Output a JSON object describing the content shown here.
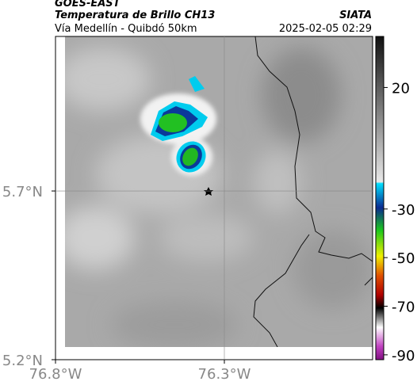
{
  "header": {
    "title": "GOES-EAST",
    "subtitle": "Temperatura de Brillo CH13",
    "route": "Vía Medellín - Quibdó 50km",
    "source": "SIATA",
    "timestamp": "2025-02-05 02:29"
  },
  "map": {
    "lonlim": [
      -76.8,
      -75.861
    ],
    "latlim": [
      5.2,
      6.158
    ],
    "xticks": [
      {
        "value": -76.8,
        "label": "76.8°W"
      },
      {
        "value": -76.3,
        "label": "76.3°W"
      }
    ],
    "yticks": [
      {
        "value": 5.2,
        "label": "5.2°N"
      },
      {
        "value": 5.7,
        "label": "5.7°N"
      }
    ],
    "colorbar": {
      "clim": [
        -92,
        41
      ],
      "ticks": [
        20,
        -30,
        -50,
        -70,
        -90
      ]
    }
  }
}
